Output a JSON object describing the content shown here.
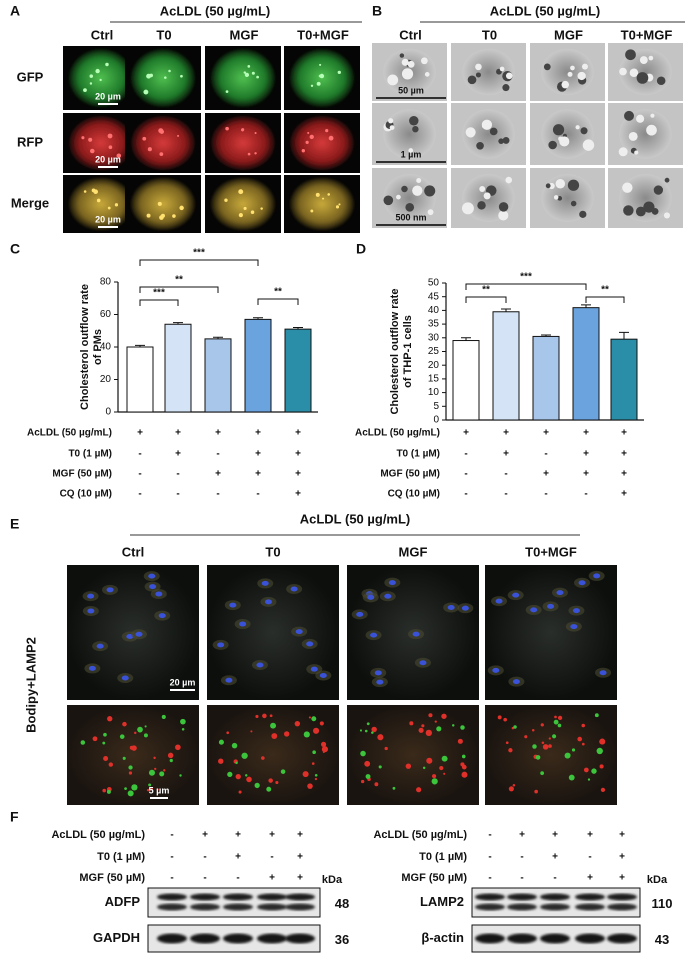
{
  "panel_a": {
    "label": "A",
    "header": "AcLDL (50 µg/mL)",
    "columns": [
      "Ctrl",
      "T0",
      "MGF",
      "T0+MGF"
    ],
    "rows": [
      "GFP",
      "RFP",
      "Merge"
    ],
    "scale_bars": [
      "20 µm",
      "20 µm",
      "20 µm"
    ]
  },
  "panel_b": {
    "label": "B",
    "header": "AcLDL (50 µg/mL)",
    "columns": [
      "Ctrl",
      "T0",
      "MGF",
      "T0+MGF"
    ],
    "scale_bars": [
      "50 µm",
      "1 µm",
      "500 nm"
    ]
  },
  "chart_data": [
    {
      "type": "bar",
      "label": "C",
      "y_label": [
        "Cholesterol outflow rate",
        "of PMs"
      ],
      "categories": [
        null,
        null,
        null,
        null,
        null
      ],
      "values": [
        40,
        54,
        45,
        57,
        51
      ],
      "errors": [
        1,
        1,
        1,
        1,
        1
      ],
      "colors": [
        "#ffffff",
        "#d4e3f5",
        "#a8c6ea",
        "#6aa3de",
        "#2a8ea8"
      ],
      "ylim": [
        0,
        80
      ],
      "yticks": [
        0,
        20,
        40,
        60,
        80
      ],
      "significance": [
        "***",
        "**",
        "***",
        "**"
      ],
      "conditions": [
        {
          "name": "AcLDL (50 µg/mL)",
          "values": [
            "+",
            "+",
            "+",
            "+",
            "+"
          ]
        },
        {
          "name": "T0 (1 µM)",
          "values": [
            "-",
            "+",
            "-",
            "+",
            "+"
          ]
        },
        {
          "name": "MGF (50 µM)",
          "values": [
            "-",
            "-",
            "+",
            "+",
            "+"
          ]
        },
        {
          "name": "CQ (10 µM)",
          "values": [
            "-",
            "-",
            "-",
            "-",
            "+"
          ]
        }
      ]
    },
    {
      "type": "bar",
      "label": "D",
      "y_label": [
        "Cholesterol outflow rate",
        "of THP-1 cells"
      ],
      "categories": [
        null,
        null,
        null,
        null,
        null
      ],
      "values": [
        29,
        39.5,
        30.5,
        41,
        29.5
      ],
      "errors": [
        1,
        1,
        0.5,
        1,
        2.5
      ],
      "colors": [
        "#ffffff",
        "#d4e3f5",
        "#a8c6ea",
        "#6aa3de",
        "#2a8ea8"
      ],
      "ylim": [
        0,
        50
      ],
      "yticks": [
        0,
        5,
        10,
        15,
        20,
        25,
        30,
        35,
        40,
        45,
        50
      ],
      "significance": [
        "**",
        "***",
        "**"
      ],
      "conditions": [
        {
          "name": "AcLDL (50 µg/mL)",
          "values": [
            "+",
            "+",
            "+",
            "+",
            "+"
          ]
        },
        {
          "name": "T0 (1 µM)",
          "values": [
            "-",
            "+",
            "-",
            "+",
            "+"
          ]
        },
        {
          "name": "MGF (50 µM)",
          "values": [
            "-",
            "-",
            "+",
            "+",
            "+"
          ]
        },
        {
          "name": "CQ (10 µM)",
          "values": [
            "-",
            "-",
            "-",
            "-",
            "+"
          ]
        }
      ]
    }
  ],
  "panel_e": {
    "label": "E",
    "header": "AcLDL (50 µg/mL)",
    "columns": [
      "Ctrl",
      "T0",
      "MGF",
      "T0+MGF"
    ],
    "row_label": "Bodipy+LAMP2",
    "scale_bars": [
      "20 µm",
      "5 µm"
    ]
  },
  "panel_f": {
    "label": "F",
    "unit": "kDa",
    "blots": [
      {
        "conditions": [
          {
            "name": "AcLDL (50 µg/mL)",
            "values": [
              "-",
              "+",
              "+",
              "+",
              "+"
            ]
          },
          {
            "name": "T0 (1 µM)",
            "values": [
              "-",
              "-",
              "+",
              "-",
              "+"
            ]
          },
          {
            "name": "MGF (50 µM)",
            "values": [
              "-",
              "-",
              "-",
              "+",
              "+"
            ]
          }
        ],
        "bands": [
          {
            "name": "ADFP",
            "kda": "48"
          },
          {
            "name": "GAPDH",
            "kda": "36"
          }
        ]
      },
      {
        "conditions": [
          {
            "name": "AcLDL (50 µg/mL)",
            "values": [
              "-",
              "+",
              "+",
              "+",
              "+"
            ]
          },
          {
            "name": "T0 (1 µM)",
            "values": [
              "-",
              "-",
              "+",
              "-",
              "+"
            ]
          },
          {
            "name": "MGF (50 µM)",
            "values": [
              "-",
              "-",
              "-",
              "+",
              "+"
            ]
          }
        ],
        "bands": [
          {
            "name": "LAMP2",
            "kda": "110"
          },
          {
            "name": "β-actin",
            "kda": "43"
          }
        ]
      }
    ]
  }
}
